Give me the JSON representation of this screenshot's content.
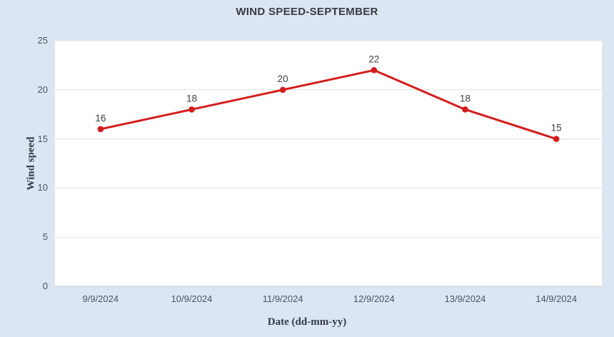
{
  "chart_data": {
    "type": "line",
    "title": "WIND SPEED-SEPTEMBER",
    "categories": [
      "9/9/2024",
      "10/9/2024",
      "11/9/2024",
      "12/9/2024",
      "13/9/2024",
      "14/9/2024"
    ],
    "values": [
      16,
      18,
      20,
      22,
      18,
      15
    ],
    "xlabel": "Date (dd-mm-yy)",
    "ylabel": "Wind speed",
    "ylim": [
      0,
      25
    ],
    "yticks": [
      0,
      5,
      10,
      15,
      20,
      25
    ],
    "grid": true,
    "legend": "none",
    "data_labels": [
      "16",
      "18",
      "20",
      "22",
      "18",
      "15"
    ]
  },
  "colors": {
    "background": "#dbe6f2",
    "plot_background": "#ffffff",
    "gridline": "#e3e3e3",
    "axis_line": "#c6c9cc",
    "series": "#d41c1c",
    "title_text": "#373c42",
    "tick_text": "#4c5560",
    "data_label_text": "#404040",
    "axis_title_text": "#333b47"
  }
}
